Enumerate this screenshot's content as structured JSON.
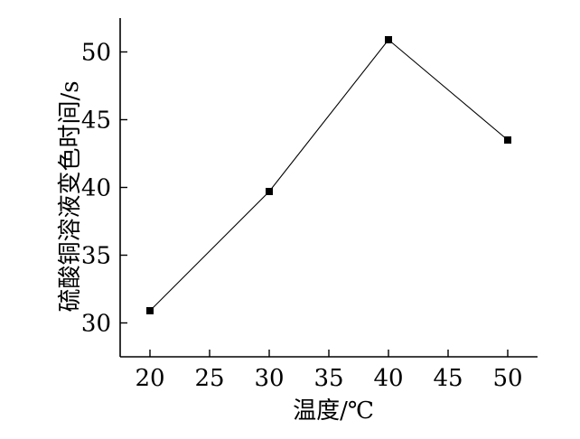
{
  "chart_data": {
    "type": "line",
    "xlabel": "温度/℃",
    "ylabel": "硫酸铜溶液变色时间/s",
    "x_ticks": [
      20,
      25,
      30,
      35,
      40,
      45,
      50
    ],
    "y_ticks": [
      30,
      35,
      40,
      45,
      50
    ],
    "xlim": [
      17.5,
      52.5
    ],
    "ylim": [
      27.5,
      52.5
    ],
    "grid": false,
    "marker": "square",
    "x": [
      20,
      30,
      40,
      50
    ],
    "series": [
      {
        "values": [
          30.9,
          39.7,
          50.9,
          43.5
        ]
      }
    ]
  }
}
